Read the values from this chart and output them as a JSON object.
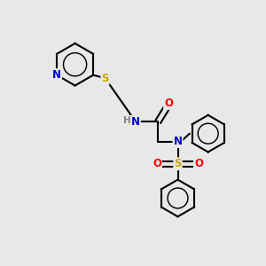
{
  "background_color": "#e8e8e8",
  "atom_colors": {
    "C": "#000000",
    "N": "#0000cc",
    "O": "#ff0000",
    "S": "#ccaa00",
    "H": "#808080"
  },
  "bond_color": "#000000",
  "bond_width": 1.5,
  "figsize": [
    3.0,
    3.0
  ],
  "dpi": 100,
  "xlim": [
    0,
    10
  ],
  "ylim": [
    0,
    10
  ]
}
